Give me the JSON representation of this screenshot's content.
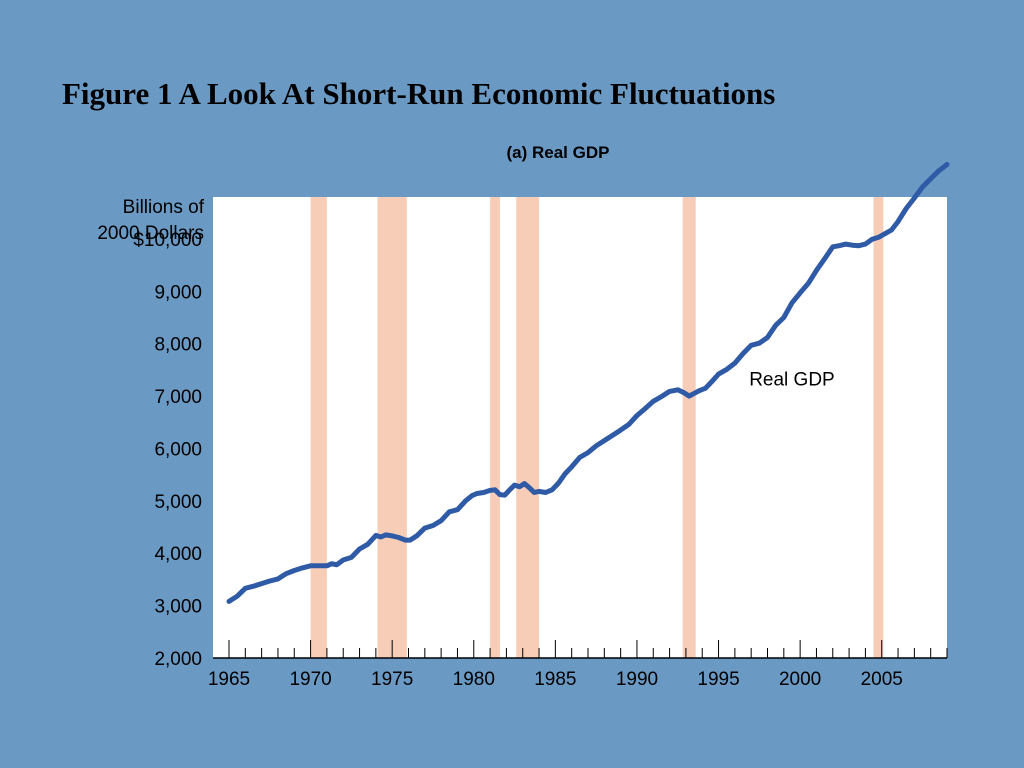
{
  "slide": {
    "title": "Figure 1 A Look At Short-Run Economic Fluctuations"
  },
  "colors": {
    "background": "#6a9ac4",
    "plot_background": "#ffffff",
    "line": "#2f5aa6",
    "recession_band": "#f8cdb8"
  },
  "chart_data": {
    "type": "line",
    "title": "(a) Real GDP",
    "ylabel_lines": [
      "Billions of",
      "2000 Dollars"
    ],
    "xlabel": "",
    "xlim": [
      1965,
      2009
    ],
    "ylim": [
      2000,
      10800
    ],
    "yticks": [
      {
        "value": 10000,
        "label": "$10,000"
      },
      {
        "value": 9000,
        "label": "9,000"
      },
      {
        "value": 8000,
        "label": "8,000"
      },
      {
        "value": 7000,
        "label": "7,000"
      },
      {
        "value": 6000,
        "label": "6,000"
      },
      {
        "value": 5000,
        "label": "5,000"
      },
      {
        "value": 4000,
        "label": "4,000"
      },
      {
        "value": 3000,
        "label": "3,000"
      },
      {
        "value": 2000,
        "label": "2,000"
      }
    ],
    "xticks": [
      {
        "value": 1965,
        "label": "1965"
      },
      {
        "value": 1970,
        "label": "1970"
      },
      {
        "value": 1975,
        "label": "1975"
      },
      {
        "value": 1980,
        "label": "1980"
      },
      {
        "value": 1985,
        "label": "1985"
      },
      {
        "value": 1990,
        "label": "1990"
      },
      {
        "value": 1995,
        "label": "1995"
      },
      {
        "value": 2000,
        "label": "2000"
      },
      {
        "value": 2005,
        "label": "2005"
      }
    ],
    "recessions": [
      [
        1970.0,
        1971.0
      ],
      [
        1974.1,
        1975.9
      ],
      [
        1981.0,
        1981.6
      ],
      [
        1982.6,
        1984.0
      ],
      [
        1992.8,
        1993.6
      ],
      [
        2004.5,
        2005.1
      ]
    ],
    "series": [
      {
        "name": "Real GDP",
        "x": [
          1965.0,
          1965.5,
          1966.0,
          1966.5,
          1967.0,
          1967.5,
          1968.0,
          1968.5,
          1969.0,
          1969.5,
          1970.0,
          1970.5,
          1971.0,
          1971.3,
          1971.6,
          1972.0,
          1972.5,
          1973.0,
          1973.5,
          1974.0,
          1974.3,
          1974.6,
          1975.0,
          1975.4,
          1975.8,
          1976.1,
          1976.5,
          1977.0,
          1977.5,
          1978.0,
          1978.5,
          1979.0,
          1979.5,
          1979.9,
          1980.2,
          1980.6,
          1981.0,
          1981.3,
          1981.6,
          1981.9,
          1982.2,
          1982.5,
          1982.8,
          1983.1,
          1983.4,
          1983.7,
          1984.0,
          1984.4,
          1984.8,
          1985.2,
          1985.6,
          1986.0,
          1986.5,
          1987.0,
          1987.5,
          1988.0,
          1988.5,
          1989.0,
          1989.5,
          1990.0,
          1990.5,
          1991.0,
          1991.5,
          1992.0,
          1992.5,
          1992.9,
          1993.2,
          1993.5,
          1993.8,
          1994.2,
          1994.6,
          1995.0,
          1995.5,
          1996.0,
          1996.5,
          1997.0,
          1997.5,
          1998.0,
          1998.5,
          1999.0,
          1999.5,
          2000.0,
          2000.5,
          2001.0,
          2001.5,
          2002.0,
          2002.4,
          2002.8,
          2003.2,
          2003.6,
          2004.0,
          2004.4,
          2004.8,
          2005.2,
          2005.6,
          2006.0,
          2006.5,
          2007.0,
          2007.5,
          2008.0,
          2008.5,
          2009.0
        ],
        "y": [
          3080,
          3180,
          3330,
          3370,
          3420,
          3470,
          3510,
          3610,
          3670,
          3720,
          3760,
          3760,
          3760,
          3800,
          3780,
          3870,
          3920,
          4080,
          4170,
          4340,
          4310,
          4350,
          4330,
          4300,
          4250,
          4250,
          4330,
          4480,
          4530,
          4620,
          4790,
          4830,
          5000,
          5100,
          5140,
          5160,
          5200,
          5210,
          5120,
          5110,
          5210,
          5300,
          5270,
          5330,
          5250,
          5160,
          5180,
          5160,
          5210,
          5340,
          5520,
          5650,
          5830,
          5920,
          6050,
          6150,
          6250,
          6350,
          6460,
          6630,
          6760,
          6900,
          6990,
          7090,
          7120,
          7060,
          7000,
          7050,
          7100,
          7150,
          7280,
          7420,
          7510,
          7630,
          7810,
          7970,
          8010,
          8120,
          8350,
          8500,
          8780,
          8970,
          9150,
          9400,
          9620,
          9850,
          9870,
          9900,
          9880,
          9870,
          9900,
          9990,
          10030,
          10100,
          10170,
          10330,
          10580,
          10780,
          10990,
          11150,
          11300,
          11420
        ]
      }
    ],
    "annotations": [
      {
        "text": "Real GDP",
        "x": 1999.5,
        "y": 7200
      }
    ],
    "grid": false,
    "legend": "none"
  }
}
